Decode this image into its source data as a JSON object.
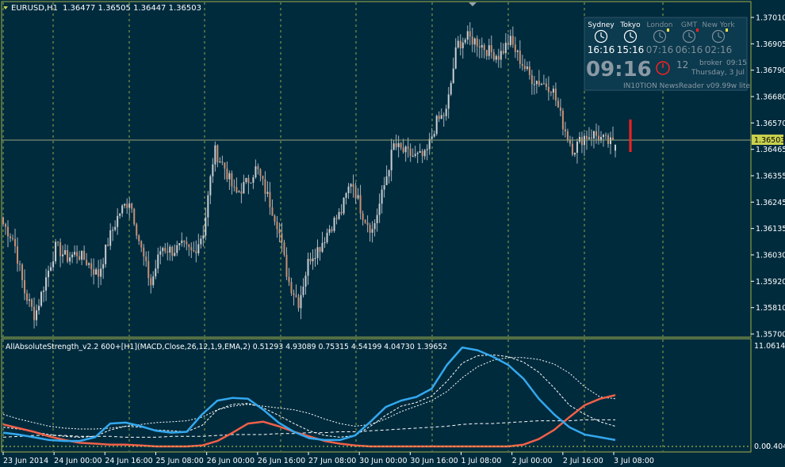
{
  "price_header": {
    "symbol": "EURUSD,H1",
    "values": "1.36477 1.36505 1.36447 1.36503"
  },
  "indicator_header": "AllAbsoluteStrength_v2.2 600+[H1](MACD,Close,26,12,1,9,EMA,2) 0.51293 4.93089 0.75315 4.54199 4.04730 1.39652",
  "price_axis": {
    "ticks": [
      "1.37010",
      "1.36905",
      "1.36790",
      "1.36680",
      "1.36570",
      "1.36465",
      "1.36355",
      "1.36245",
      "1.36135",
      "1.36030",
      "1.35920",
      "1.35810",
      "1.35700"
    ],
    "current_price": "1.36503"
  },
  "indicator_axis": {
    "top": "11.06142",
    "bottom": "0.00",
    "bottom_overlap": "0.404"
  },
  "time_axis": [
    "23 Jun 2014",
    "24 Jun 00:00",
    "24 Jun 16:00",
    "25 Jun 08:00",
    "26 Jun 00:00",
    "26 Jun 16:00",
    "27 Jun 08:00",
    "30 Jun 00:00",
    "30 Jun 16:00",
    "1 Jul 08:00",
    "2 Jul 00:00",
    "2 Jul 16:00",
    "3 Jul 08:00"
  ],
  "clock_widget": {
    "cities": [
      {
        "name": "Sydney",
        "time": "16:16",
        "active": true
      },
      {
        "name": "Tokyo",
        "time": "15:16",
        "active": true
      },
      {
        "name": "London",
        "time": "07:16",
        "active": false
      },
      {
        "name": "GMT",
        "time": "06:16",
        "active": false
      },
      {
        "name": "New York",
        "time": "02:16",
        "active": false
      }
    ],
    "big_time": "09:16",
    "countdown": "12",
    "broker_label": "broker",
    "broker_time": "09:15",
    "date": "Thursday, 3 Jul",
    "newsreader": "IN10TION NewsReader v09.99w lite"
  },
  "colors": {
    "background": "#002b3d",
    "grid": "#c8d14e",
    "frame": "#a3b04a",
    "bull_candle": "#c9ced3",
    "bear_candle": "#c98f72",
    "wick": "#a9b4bc",
    "bid_line": "#9aa67a",
    "strength_bull": "#33a8ee",
    "strength_bear": "#f06049",
    "signal_line": "#ffffff",
    "signal_bar": "#ff2020",
    "text": "#ffffff"
  },
  "chart_data": [
    {
      "type": "candlestick",
      "title": "EURUSD,H1",
      "timeframe": "H1",
      "ylim": [
        1.3566,
        1.3712
      ],
      "x_labels": [
        "23 Jun 2014",
        "24 Jun 00:00",
        "24 Jun 16:00",
        "25 Jun 08:00",
        "26 Jun 00:00",
        "26 Jun 16:00",
        "27 Jun 08:00",
        "30 Jun 00:00",
        "30 Jun 16:00",
        "1 Jul 08:00",
        "2 Jul 00:00",
        "2 Jul 16:00",
        "3 Jul 08:00"
      ],
      "close_path": [
        1.3615,
        1.3608,
        1.3585,
        1.3574,
        1.359,
        1.3605,
        1.36,
        1.3602,
        1.3598,
        1.3592,
        1.3608,
        1.362,
        1.3626,
        1.3605,
        1.3588,
        1.3605,
        1.3603,
        1.3605,
        1.3602,
        1.3612,
        1.3648,
        1.364,
        1.3628,
        1.3633,
        1.364,
        1.3628,
        1.3615,
        1.359,
        1.358,
        1.36,
        1.3605,
        1.3614,
        1.362,
        1.3635,
        1.362,
        1.3612,
        1.363,
        1.365,
        1.3647,
        1.3645,
        1.3645,
        1.366,
        1.3665,
        1.3695,
        1.3698,
        1.3696,
        1.3692,
        1.369,
        1.3697,
        1.3688,
        1.368,
        1.3678,
        1.3676,
        1.366,
        1.3648,
        1.3654,
        1.3655,
        1.3652,
        1.365
      ],
      "last_bar": {
        "open": 1.36477,
        "high": 1.36505,
        "low": 1.36447,
        "close": 1.36503
      }
    },
    {
      "type": "line",
      "title": "AllAbsoluteStrength_v2.2 600+[H1](MACD,Close,26,12,1,9,EMA,2)",
      "ylim": [
        0,
        11.06142
      ],
      "series": [
        {
          "values": [
            1.5,
            1.3,
            1.0,
            0.7,
            0.6,
            0.6,
            1.0,
            2.5,
            2.6,
            2.2,
            1.7,
            1.5,
            1.6,
            3.5,
            5.0,
            5.3,
            5.2,
            4.0,
            2.6,
            1.6,
            0.9,
            0.7,
            0.7,
            1.2,
            2.7,
            4.3,
            5.0,
            5.4,
            6.3,
            8.9,
            10.8,
            10.5,
            9.8,
            8.9,
            7.4,
            5.2,
            3.5,
            2.1,
            1.3,
            1.0,
            0.7
          ]
        },
        {
          "values": [
            2.4,
            2.0,
            1.6,
            1.1,
            0.7,
            0.4,
            0.3,
            0.2,
            0.2,
            0.1,
            0.0,
            0.0,
            0.0,
            0.1,
            0.6,
            1.5,
            2.5,
            2.7,
            2.2,
            1.6,
            1.1,
            0.6,
            0.3,
            0.1,
            0.0,
            0.0,
            0.0,
            0.0,
            0.0,
            0.0,
            0.0,
            0.0,
            0.0,
            0.0,
            0.2,
            0.8,
            1.8,
            3.2,
            4.5,
            5.2,
            5.6
          ]
        },
        {
          "values": [
            2.1,
            1.9,
            1.6,
            1.3,
            1.1,
            1.0,
            1.1,
            1.8,
            2.2,
            2.1,
            1.8,
            1.7,
            1.6,
            2.3,
            4.0,
            4.6,
            4.7,
            4.2,
            3.4,
            2.5,
            1.7,
            1.2,
            1.0,
            1.2,
            2.2,
            3.4,
            4.4,
            4.8,
            5.5,
            7.1,
            9.1,
            9.9,
            10.0,
            9.8,
            9.2,
            8.1,
            6.4,
            4.5,
            3.5,
            2.7,
            2.2
          ]
        },
        {
          "values": [
            1.0,
            1.1,
            1.2,
            1.2,
            1.2,
            1.1,
            1.1,
            1.1,
            1.0,
            1.0,
            1.0,
            1.1,
            1.1,
            1.1,
            1.2,
            1.3,
            1.3,
            1.3,
            1.4,
            1.4,
            1.5,
            1.5,
            1.6,
            1.6,
            1.7,
            1.8,
            1.9,
            2.0,
            2.1,
            2.2,
            2.4,
            2.5,
            2.5,
            2.6,
            2.7,
            2.8,
            2.8,
            2.8,
            2.9,
            2.9,
            2.9
          ]
        },
        {
          "values": [
            3.5,
            3.0,
            2.6,
            2.2,
            2.0,
            1.9,
            1.9,
            2.0,
            2.2,
            2.4,
            2.6,
            2.7,
            2.8,
            3.2,
            4.0,
            4.4,
            4.6,
            4.4,
            4.2,
            4.0,
            3.6,
            3.0,
            2.5,
            2.2,
            2.4,
            3.0,
            3.8,
            4.4,
            5.0,
            6.0,
            7.5,
            8.7,
            9.4,
            9.7,
            9.7,
            9.5,
            9.0,
            8.0,
            6.5,
            5.4,
            5.2
          ]
        }
      ]
    }
  ]
}
